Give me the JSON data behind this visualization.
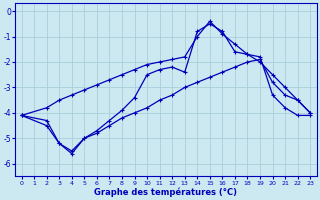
{
  "xlabel": "Graphe des températures (°C)",
  "bg_color": "#cce8f0",
  "grid_color": "#aacfdb",
  "line_color": "#0000bb",
  "xlim": [
    -0.5,
    23.5
  ],
  "ylim": [
    -6.5,
    0.3
  ],
  "xticks": [
    0,
    1,
    2,
    3,
    4,
    5,
    6,
    7,
    8,
    9,
    10,
    11,
    12,
    13,
    14,
    15,
    16,
    17,
    18,
    19,
    20,
    21,
    22,
    23
  ],
  "yticks": [
    0,
    -1,
    -2,
    -3,
    -4,
    -5,
    -6
  ],
  "line1_x": [
    0,
    2,
    3,
    4,
    5,
    6,
    7,
    8,
    9,
    10,
    11,
    12,
    13,
    14,
    15,
    16,
    17,
    18,
    19,
    20,
    21,
    22,
    23
  ],
  "line1_y": [
    -4.1,
    -4.5,
    -5.2,
    -5.5,
    -5.0,
    -4.8,
    -4.5,
    -4.2,
    -4.0,
    -3.8,
    -3.5,
    -3.3,
    -3.0,
    -2.8,
    -2.6,
    -2.4,
    -2.2,
    -2.0,
    -1.9,
    -2.8,
    -3.3,
    -3.5,
    -4.0
  ],
  "line2_x": [
    0,
    2,
    3,
    4,
    5,
    6,
    7,
    8,
    9,
    10,
    11,
    12,
    13,
    14,
    15,
    16,
    17,
    18,
    19,
    20,
    21,
    22,
    23
  ],
  "line2_y": [
    -4.1,
    -4.3,
    -5.2,
    -5.6,
    -5.0,
    -4.7,
    -4.3,
    -3.9,
    -3.4,
    -2.5,
    -2.3,
    -2.2,
    -2.4,
    -0.8,
    -0.5,
    -0.8,
    -1.6,
    -1.7,
    -1.8,
    -3.3,
    -3.8,
    -4.1,
    -4.1
  ],
  "line3_x": [
    0,
    2,
    3,
    4,
    5,
    6,
    7,
    8,
    9,
    10,
    11,
    12,
    13,
    14,
    15,
    16,
    17,
    18,
    19,
    20,
    21,
    22,
    23
  ],
  "line3_y": [
    -4.1,
    -3.8,
    -3.5,
    -3.3,
    -3.1,
    -2.9,
    -2.7,
    -2.5,
    -2.3,
    -2.1,
    -2.0,
    -1.9,
    -1.8,
    -1.0,
    -0.4,
    -0.9,
    -1.3,
    -1.7,
    -2.0,
    -2.5,
    -3.0,
    -3.5,
    -4.0
  ]
}
